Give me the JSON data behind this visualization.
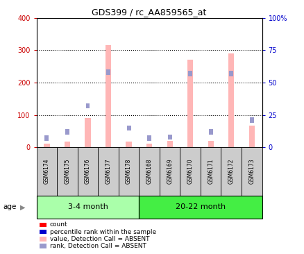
{
  "title": "GDS399 / rc_AA859565_at",
  "samples": [
    "GSM6174",
    "GSM6175",
    "GSM6176",
    "GSM6177",
    "GSM6178",
    "GSM6168",
    "GSM6169",
    "GSM6170",
    "GSM6171",
    "GSM6172",
    "GSM6173"
  ],
  "group1_label": "3-4 month",
  "group2_label": "20-22 month",
  "group1_count": 5,
  "group2_count": 6,
  "absent_bar_color": "#FFB6B6",
  "absent_rank_color": "#9999CC",
  "present_bar_color": "#FF0000",
  "present_rank_color": "#0000CC",
  "value_bars": [
    12,
    18,
    90,
    315,
    18,
    12,
    20,
    270,
    20,
    290,
    68
  ],
  "rank_squares_pct": [
    7,
    12,
    32,
    58,
    15,
    7,
    8,
    57,
    12,
    57,
    21
  ],
  "ylim_left": [
    0,
    400
  ],
  "ylim_right": [
    0,
    100
  ],
  "left_ticks": [
    0,
    100,
    200,
    300,
    400
  ],
  "right_ticks": [
    0,
    25,
    50,
    75,
    100
  ],
  "dotted_grid_values": [
    100,
    200,
    300
  ],
  "left_tick_color": "#CC0000",
  "right_tick_color": "#0000CC",
  "group_bg_light": "#AAFFAA",
  "group_bg_dark": "#44EE44",
  "sample_bg_color": "#CCCCCC",
  "axis_bg_color": "#FFFFFF",
  "legend_items": [
    {
      "label": "count",
      "color": "#FF0000"
    },
    {
      "label": "percentile rank within the sample",
      "color": "#0000CC"
    },
    {
      "label": "value, Detection Call = ABSENT",
      "color": "#FFB6B6"
    },
    {
      "label": "rank, Detection Call = ABSENT",
      "color": "#9999CC"
    }
  ]
}
